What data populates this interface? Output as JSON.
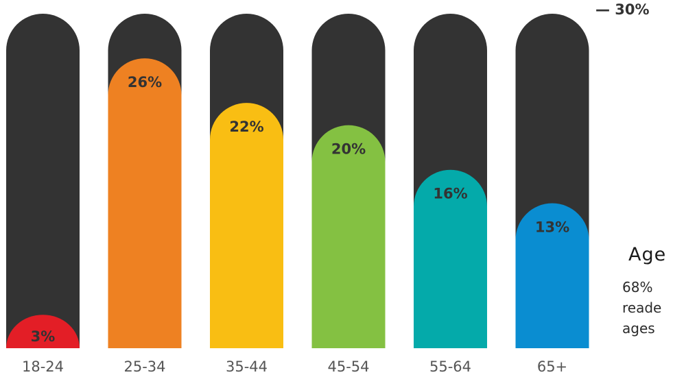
{
  "chart_data": {
    "type": "bar",
    "categories": [
      "18-24",
      "25-34",
      "35-44",
      "45-54",
      "55-64",
      "65+"
    ],
    "values": [
      3,
      26,
      22,
      20,
      16,
      13
    ],
    "value_labels": [
      "3%",
      "26%",
      "22%",
      "20%",
      "16%",
      "13%"
    ],
    "ylim": [
      0,
      30
    ],
    "scale_max_label": "— 30%",
    "colors": [
      "#e31e26",
      "#ee8122",
      "#f9be13",
      "#84c142",
      "#04aaaa",
      "#0a8dd1"
    ],
    "track_color": "#333333",
    "grid": false
  },
  "side_panel": {
    "title": "Age",
    "lines": [
      "68%",
      "reade",
      "ages"
    ]
  }
}
